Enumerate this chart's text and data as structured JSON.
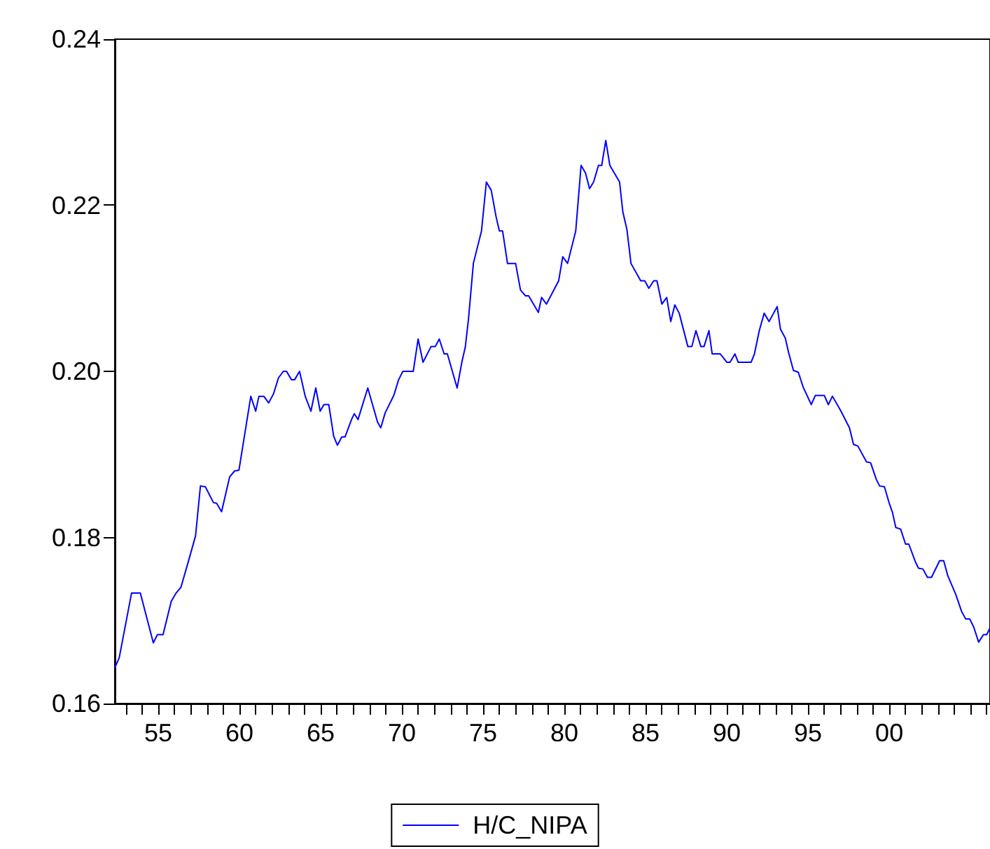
{
  "chart_data": {
    "type": "line",
    "x": [
      1952.33,
      1952.6,
      1952.99,
      1953.36,
      1953.9,
      1954.7,
      1954.95,
      1955.3,
      1955.8,
      1956.1,
      1956.4,
      1956.9,
      1957.3,
      1957.6,
      1957.9,
      1958.4,
      1958.6,
      1958.9,
      1959.4,
      1959.7,
      1959.97,
      1960.7,
      1961.0,
      1961.2,
      1961.5,
      1961.8,
      1962.1,
      1962.4,
      1962.7,
      1962.9,
      1963.2,
      1963.4,
      1963.7,
      1964.05,
      1964.4,
      1964.7,
      1964.97,
      1965.2,
      1965.5,
      1965.8,
      1966.03,
      1966.3,
      1966.5,
      1966.9,
      1967.07,
      1967.3,
      1967.9,
      1968.5,
      1968.7,
      1968.97,
      1969.5,
      1969.8,
      1970.06,
      1970.7,
      1971.0,
      1971.3,
      1971.8,
      1972.06,
      1972.3,
      1972.6,
      1972.8,
      1973.4,
      1973.7,
      1973.9,
      1974.1,
      1974.4,
      1974.9,
      1975.2,
      1975.5,
      1975.8,
      1976.0,
      1976.2,
      1976.5,
      1977.0,
      1977.3,
      1977.6,
      1977.8,
      1978.4,
      1978.6,
      1978.9,
      1979.65,
      1979.9,
      1980.2,
      1980.7,
      1981.03,
      1981.3,
      1981.55,
      1981.8,
      1982.1,
      1982.3,
      1982.55,
      1982.8,
      1983.4,
      1983.6,
      1983.85,
      1984.1,
      1984.7,
      1984.95,
      1985.2,
      1985.5,
      1985.7,
      1986.0,
      1986.3,
      1986.55,
      1986.8,
      1987.07,
      1987.6,
      1987.85,
      1988.1,
      1988.4,
      1988.6,
      1988.9,
      1989.1,
      1989.6,
      1990.0,
      1990.2,
      1990.5,
      1990.7,
      1991.5,
      1991.7,
      1992.0,
      1992.3,
      1992.6,
      1993.1,
      1993.3,
      1993.6,
      1993.8,
      1994.1,
      1994.4,
      1994.7,
      1995.2,
      1995.45,
      1996.0,
      1996.25,
      1996.5,
      1997.0,
      1997.55,
      1997.8,
      1998.07,
      1998.6,
      1998.85,
      1999.2,
      1999.4,
      1999.7,
      2000.0,
      2000.2,
      2000.4,
      2000.7,
      2001.0,
      2001.2,
      2001.6,
      2001.8,
      2002.07,
      2002.35,
      2002.6,
      2003.1,
      2003.35,
      2003.6,
      2004.1,
      2004.45,
      2004.7,
      2004.95,
      2005.2,
      2005.5,
      2005.8,
      2006.0,
      2006.2
    ],
    "series": [
      {
        "name": "H/C_NIPA",
        "color": "#0000ff",
        "values": [
          0.1643,
          0.1655,
          0.1695,
          0.1733,
          0.1733,
          0.1673,
          0.1683,
          0.1683,
          0.1723,
          0.1733,
          0.174,
          0.1774,
          0.1802,
          0.1862,
          0.1861,
          0.1842,
          0.1841,
          0.1831,
          0.1873,
          0.188,
          0.1881,
          0.197,
          0.1952,
          0.197,
          0.197,
          0.1962,
          0.1973,
          0.1992,
          0.2,
          0.2,
          0.199,
          0.199,
          0.2,
          0.197,
          0.1952,
          0.198,
          0.1952,
          0.196,
          0.196,
          0.1922,
          0.1911,
          0.1921,
          0.1921,
          0.1942,
          0.1949,
          0.1942,
          0.198,
          0.1939,
          0.1932,
          0.195,
          0.1971,
          0.199,
          0.2,
          0.2,
          0.2039,
          0.2011,
          0.203,
          0.203,
          0.2039,
          0.2021,
          0.2021,
          0.198,
          0.2012,
          0.2029,
          0.2063,
          0.213,
          0.2169,
          0.2228,
          0.2218,
          0.2186,
          0.2169,
          0.2169,
          0.213,
          0.213,
          0.2098,
          0.2091,
          0.2091,
          0.2071,
          0.2089,
          0.2081,
          0.2109,
          0.2138,
          0.213,
          0.2169,
          0.2248,
          0.2239,
          0.222,
          0.2228,
          0.2248,
          0.2248,
          0.2278,
          0.2248,
          0.2228,
          0.2192,
          0.2171,
          0.213,
          0.2109,
          0.2109,
          0.21,
          0.2109,
          0.2109,
          0.2081,
          0.2089,
          0.206,
          0.208,
          0.207,
          0.203,
          0.203,
          0.2049,
          0.203,
          0.203,
          0.2049,
          0.2021,
          0.2021,
          0.2011,
          0.2011,
          0.2021,
          0.2011,
          0.2011,
          0.2021,
          0.2049,
          0.207,
          0.206,
          0.2078,
          0.2051,
          0.204,
          0.2023,
          0.2001,
          0.1999,
          0.1981,
          0.196,
          0.1971,
          0.1971,
          0.196,
          0.197,
          0.1953,
          0.1932,
          0.1912,
          0.191,
          0.1891,
          0.189,
          0.187,
          0.1862,
          0.1861,
          0.1841,
          0.183,
          0.1812,
          0.181,
          0.1792,
          0.1792,
          0.1771,
          0.1763,
          0.1762,
          0.1752,
          0.1752,
          0.1772,
          0.1772,
          0.1754,
          0.1731,
          0.1711,
          0.1702,
          0.1702,
          0.1692,
          0.1674,
          0.1683,
          0.1683,
          0.1691
        ]
      }
    ],
    "xlim": [
      1952.33,
      2006.2
    ],
    "xticks": [
      {
        "value": 1953,
        "label": null
      },
      {
        "value": 1954,
        "label": null
      },
      {
        "value": 1955,
        "label": "55"
      },
      {
        "value": 1956,
        "label": null
      },
      {
        "value": 1957,
        "label": null
      },
      {
        "value": 1958,
        "label": null
      },
      {
        "value": 1959,
        "label": null
      },
      {
        "value": 1960,
        "label": "60"
      },
      {
        "value": 1961,
        "label": null
      },
      {
        "value": 1962,
        "label": null
      },
      {
        "value": 1963,
        "label": null
      },
      {
        "value": 1964,
        "label": null
      },
      {
        "value": 1965,
        "label": "65"
      },
      {
        "value": 1966,
        "label": null
      },
      {
        "value": 1967,
        "label": null
      },
      {
        "value": 1968,
        "label": null
      },
      {
        "value": 1969,
        "label": null
      },
      {
        "value": 1970,
        "label": "70"
      },
      {
        "value": 1971,
        "label": null
      },
      {
        "value": 1972,
        "label": null
      },
      {
        "value": 1973,
        "label": null
      },
      {
        "value": 1974,
        "label": null
      },
      {
        "value": 1975,
        "label": "75"
      },
      {
        "value": 1976,
        "label": null
      },
      {
        "value": 1977,
        "label": null
      },
      {
        "value": 1978,
        "label": null
      },
      {
        "value": 1979,
        "label": null
      },
      {
        "value": 1980,
        "label": "80"
      },
      {
        "value": 1981,
        "label": null
      },
      {
        "value": 1982,
        "label": null
      },
      {
        "value": 1983,
        "label": null
      },
      {
        "value": 1984,
        "label": null
      },
      {
        "value": 1985,
        "label": "85"
      },
      {
        "value": 1986,
        "label": null
      },
      {
        "value": 1987,
        "label": null
      },
      {
        "value": 1988,
        "label": null
      },
      {
        "value": 1989,
        "label": null
      },
      {
        "value": 1990,
        "label": "90"
      },
      {
        "value": 1991,
        "label": null
      },
      {
        "value": 1992,
        "label": null
      },
      {
        "value": 1993,
        "label": null
      },
      {
        "value": 1994,
        "label": null
      },
      {
        "value": 1995,
        "label": "95"
      },
      {
        "value": 1996,
        "label": null
      },
      {
        "value": 1997,
        "label": null
      },
      {
        "value": 1998,
        "label": null
      },
      {
        "value": 1999,
        "label": null
      },
      {
        "value": 2000,
        "label": "00"
      },
      {
        "value": 2001,
        "label": null
      },
      {
        "value": 2002,
        "label": null
      },
      {
        "value": 2003,
        "label": null
      },
      {
        "value": 2004,
        "label": null
      },
      {
        "value": 2005,
        "label": null
      },
      {
        "value": 2006,
        "label": null
      }
    ],
    "ylim": [
      0.16,
      0.24
    ],
    "yticks": [
      {
        "value": 0.16,
        "label": "0.16"
      },
      {
        "value": 0.18,
        "label": "0.18"
      },
      {
        "value": 0.2,
        "label": "0.20"
      },
      {
        "value": 0.22,
        "label": "0.22"
      },
      {
        "value": 0.24,
        "label": "0.24"
      }
    ],
    "legend": "bottom",
    "marker": "none",
    "line_style": "solid",
    "grid": false
  }
}
